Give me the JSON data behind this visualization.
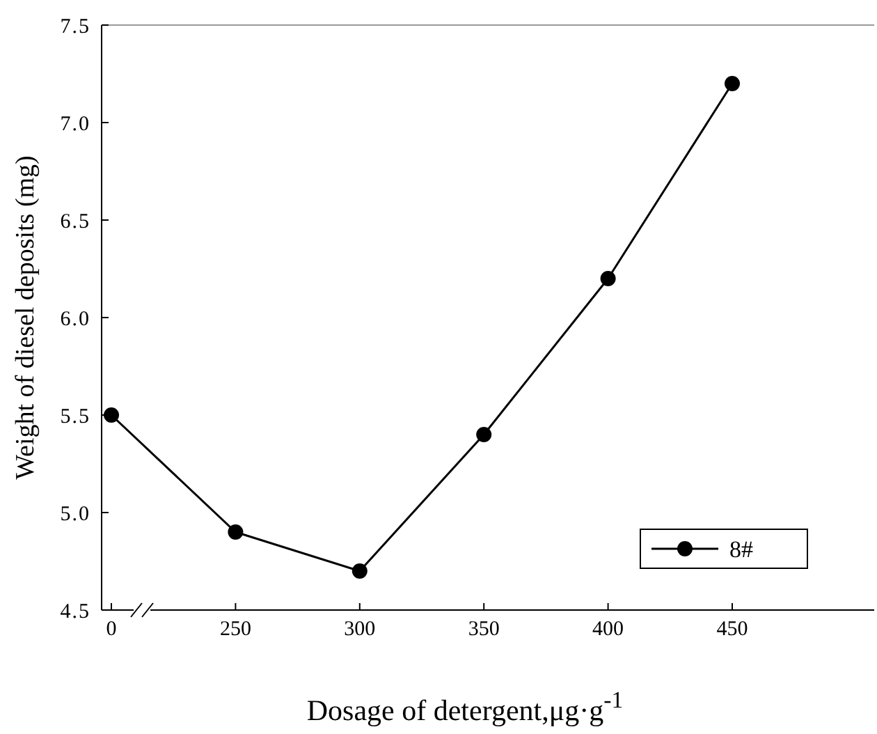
{
  "chart_data": {
    "type": "line",
    "xlabel": "Dosage of detergent,μg·g$^{-1}$",
    "ylabel": "Weight of diesel deposits (mg)",
    "categories": [
      "0",
      "250",
      "300",
      "350",
      "400",
      "450"
    ],
    "series": [
      {
        "name": "8#",
        "color": "#000000",
        "values": [
          5.5,
          4.9,
          4.7,
          5.4,
          6.2,
          7.2
        ]
      }
    ],
    "ylim": [
      4.5,
      7.5
    ],
    "yticks": [
      4.5,
      {
        "value": 5,
        "label": "5.0"
      },
      5.5,
      {
        "value": 6,
        "label": "6.0"
      },
      6.5,
      {
        "value": 7,
        "label": "7.0"
      },
      7.5
    ],
    "marker": "circle",
    "line_style": "solid",
    "legend": "bottom right",
    "grid": false
  }
}
